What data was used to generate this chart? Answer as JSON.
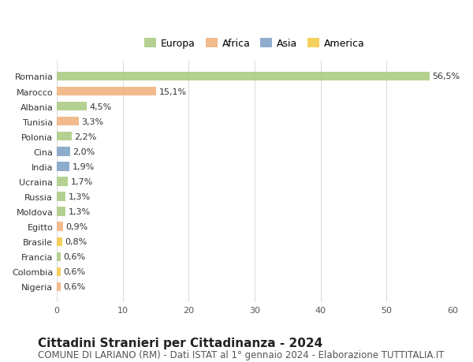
{
  "countries": [
    "Romania",
    "Marocco",
    "Albania",
    "Tunisia",
    "Polonia",
    "Cina",
    "India",
    "Ucraina",
    "Russia",
    "Moldova",
    "Egitto",
    "Brasile",
    "Francia",
    "Colombia",
    "Nigeria"
  ],
  "values": [
    56.5,
    15.1,
    4.5,
    3.3,
    2.2,
    2.0,
    1.9,
    1.7,
    1.3,
    1.3,
    0.9,
    0.8,
    0.6,
    0.6,
    0.6
  ],
  "labels": [
    "56,5%",
    "15,1%",
    "4,5%",
    "3,3%",
    "2,2%",
    "2,0%",
    "1,9%",
    "1,7%",
    "1,3%",
    "1,3%",
    "0,9%",
    "0,8%",
    "0,6%",
    "0,6%",
    "0,6%"
  ],
  "colors": [
    "#a8c97f",
    "#f0b07a",
    "#a8c97f",
    "#f0b07a",
    "#a8c97f",
    "#7a9fc4",
    "#7a9fc4",
    "#a8c97f",
    "#a8c97f",
    "#a8c97f",
    "#f0b07a",
    "#f5c842",
    "#a8c97f",
    "#f5c842",
    "#f0b07a"
  ],
  "legend": {
    "Europa": "#a8c97f",
    "Africa": "#f0b07a",
    "Asia": "#7a9fc4",
    "America": "#f5c842"
  },
  "xlim": [
    0,
    60
  ],
  "xticks": [
    0,
    10,
    20,
    30,
    40,
    50,
    60
  ],
  "title": "Cittadini Stranieri per Cittadinanza - 2024",
  "subtitle": "COMUNE DI LARIANO (RM) - Dati ISTAT al 1° gennaio 2024 - Elaborazione TUTTITALIA.IT",
  "background_color": "#ffffff",
  "grid_color": "#dddddd",
  "bar_height": 0.6,
  "title_fontsize": 11,
  "subtitle_fontsize": 8.5,
  "label_fontsize": 8,
  "tick_fontsize": 8,
  "legend_fontsize": 9
}
